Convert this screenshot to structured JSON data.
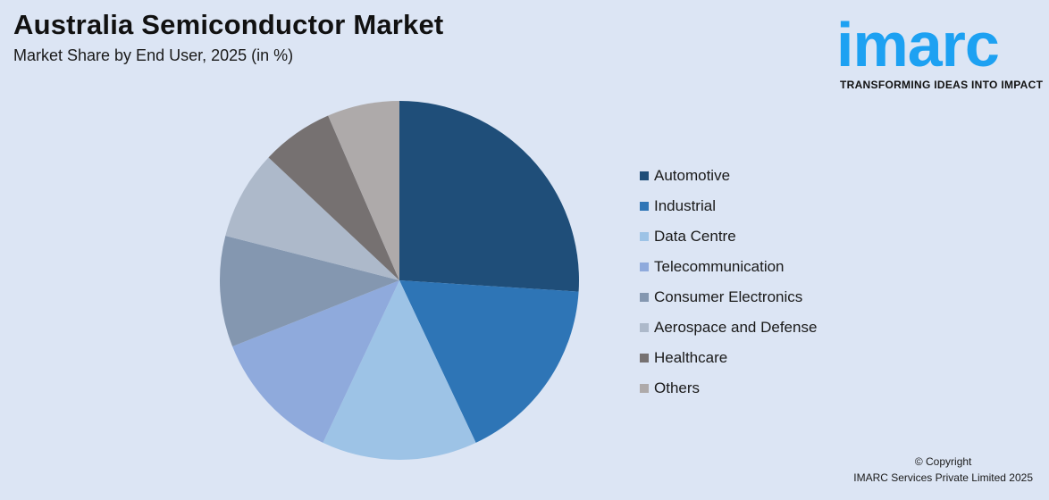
{
  "header": {
    "title": "Australia Semiconductor Market",
    "subtitle": "Market Share by End User, 2025 (in %)"
  },
  "logo": {
    "wordmark": "imarc",
    "tagline": "TRANSFORMING IDEAS INTO IMPACT",
    "color": "#1da1f2"
  },
  "chart_data": {
    "type": "pie",
    "start": "top",
    "direction": "clockwise",
    "legend_position": "right",
    "slices": [
      {
        "label": "Automotive",
        "value": 26,
        "color": "#1f4e79"
      },
      {
        "label": "Industrial",
        "value": 17,
        "color": "#2e75b6"
      },
      {
        "label": "Data Centre",
        "value": 14,
        "color": "#9dc3e6"
      },
      {
        "label": "Telecommunication",
        "value": 12,
        "color": "#8faadc"
      },
      {
        "label": "Consumer Electronics",
        "value": 10,
        "color": "#8497b0"
      },
      {
        "label": "Aerospace and Defense",
        "value": 8,
        "color": "#adb9ca"
      },
      {
        "label": "Healthcare",
        "value": 6.5,
        "color": "#767171"
      },
      {
        "label": "Others",
        "value": 6.5,
        "color": "#aeaaaa"
      }
    ]
  },
  "footer": {
    "copyright_line1": "© Copyright",
    "copyright_line2": "IMARC Services Private Limited 2025"
  }
}
